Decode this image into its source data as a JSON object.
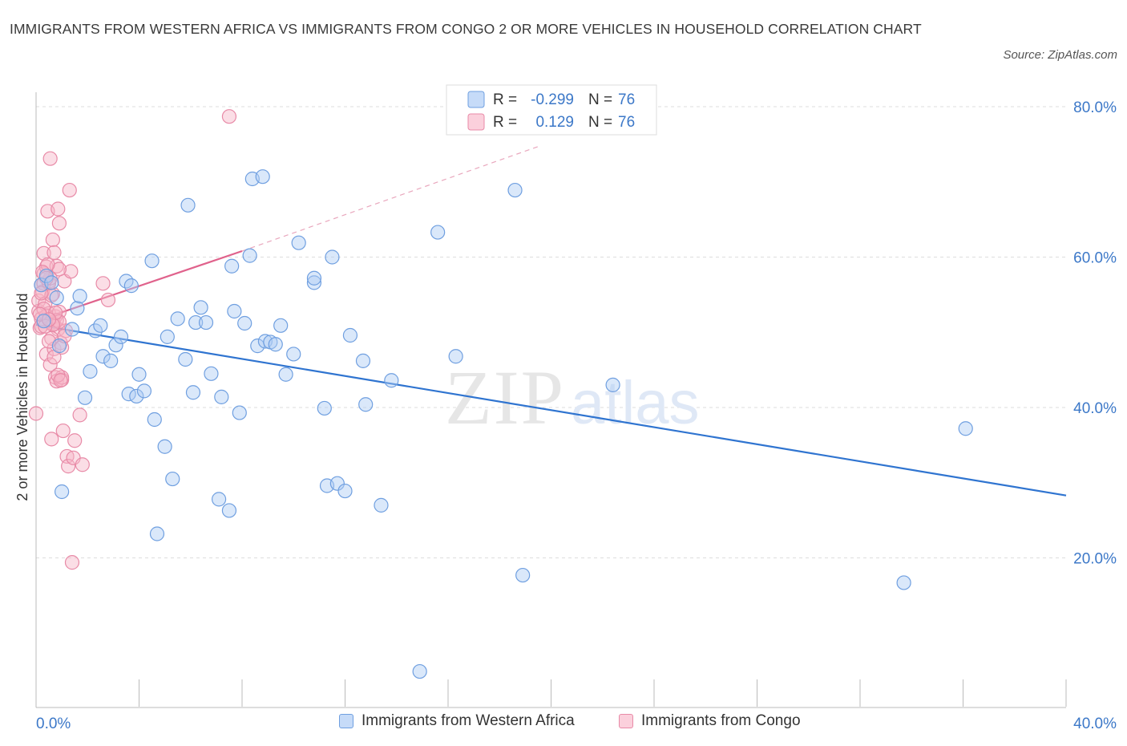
{
  "title": "IMMIGRANTS FROM WESTERN AFRICA VS IMMIGRANTS FROM CONGO 2 OR MORE VEHICLES IN HOUSEHOLD CORRELATION CHART",
  "source": "Source: ZipAtlas.com",
  "watermark": {
    "zip": "ZIP",
    "atlas": "atlas"
  },
  "colors": {
    "blue_fill": "#aecbf5",
    "blue_stroke": "#6f9fe0",
    "blue_line": "#2f74d0",
    "pink_fill": "#f7b5c8",
    "pink_stroke": "#e88aa7",
    "pink_line": "#e0628c",
    "axis_text": "#3c78c8",
    "grid": "#dddddd"
  },
  "legend": {
    "r_label": "R =",
    "n_label": "N =",
    "rows": [
      {
        "r": "-0.299",
        "n": "76",
        "color": "blue"
      },
      {
        "r": "0.129",
        "n": "76",
        "color": "pink"
      }
    ]
  },
  "bottom_legend": [
    "Immigrants from Western Africa",
    "Immigrants from Congo"
  ],
  "chart_data": {
    "type": "scatter",
    "xlabel": "",
    "ylabel": "2 or more Vehicles in Household",
    "x_tick_labels": [
      "0.0%",
      "40.0%"
    ],
    "y_tick_labels": [
      "20.0%",
      "40.0%",
      "60.0%",
      "80.0%"
    ],
    "xlim": [
      0,
      40
    ],
    "ylim": [
      0,
      80
    ],
    "grid": true,
    "legend_position": "top-center",
    "series": [
      {
        "name": "Immigrants from Western Africa",
        "color": "blue",
        "trend": {
          "x0": 0,
          "y0": 51.0,
          "x1": 40,
          "y1": 28.3,
          "dashed_extension": false
        },
        "points": [
          [
            0.2,
            56.3
          ],
          [
            0.4,
            57.5
          ],
          [
            0.6,
            56.6
          ],
          [
            0.8,
            54.6
          ],
          [
            0.9,
            48.2
          ],
          [
            1.0,
            28.8
          ],
          [
            1.4,
            50.4
          ],
          [
            1.6,
            53.2
          ],
          [
            1.7,
            54.8
          ],
          [
            1.9,
            41.3
          ],
          [
            2.1,
            44.8
          ],
          [
            2.3,
            50.2
          ],
          [
            2.5,
            50.9
          ],
          [
            2.6,
            46.8
          ],
          [
            2.9,
            46.2
          ],
          [
            3.1,
            48.3
          ],
          [
            3.3,
            49.4
          ],
          [
            3.5,
            56.8
          ],
          [
            3.7,
            56.2
          ],
          [
            3.6,
            41.8
          ],
          [
            3.9,
            41.5
          ],
          [
            4.0,
            44.4
          ],
          [
            4.2,
            42.2
          ],
          [
            4.5,
            59.5
          ],
          [
            4.6,
            38.4
          ],
          [
            4.7,
            23.2
          ],
          [
            5.0,
            34.8
          ],
          [
            5.1,
            49.4
          ],
          [
            5.3,
            30.5
          ],
          [
            5.5,
            51.8
          ],
          [
            5.8,
            46.4
          ],
          [
            5.9,
            66.9
          ],
          [
            6.1,
            42.0
          ],
          [
            6.2,
            51.3
          ],
          [
            6.4,
            53.3
          ],
          [
            6.6,
            51.3
          ],
          [
            6.8,
            44.5
          ],
          [
            7.1,
            27.8
          ],
          [
            7.2,
            41.4
          ],
          [
            7.5,
            26.3
          ],
          [
            7.6,
            58.8
          ],
          [
            7.7,
            52.8
          ],
          [
            7.9,
            39.3
          ],
          [
            8.1,
            51.2
          ],
          [
            8.3,
            60.2
          ],
          [
            8.4,
            70.4
          ],
          [
            8.6,
            48.2
          ],
          [
            8.8,
            70.7
          ],
          [
            8.9,
            48.8
          ],
          [
            9.1,
            48.7
          ],
          [
            9.3,
            48.4
          ],
          [
            9.5,
            50.9
          ],
          [
            9.7,
            44.4
          ],
          [
            10.0,
            47.1
          ],
          [
            10.2,
            61.9
          ],
          [
            10.8,
            56.6
          ],
          [
            10.8,
            57.2
          ],
          [
            11.2,
            39.9
          ],
          [
            11.3,
            29.6
          ],
          [
            11.5,
            60.0
          ],
          [
            11.7,
            29.9
          ],
          [
            12.0,
            28.9
          ],
          [
            12.2,
            49.6
          ],
          [
            12.7,
            46.2
          ],
          [
            12.8,
            40.4
          ],
          [
            13.4,
            27.0
          ],
          [
            13.8,
            43.6
          ],
          [
            14.9,
            4.9
          ],
          [
            15.6,
            63.3
          ],
          [
            16.3,
            46.8
          ],
          [
            18.6,
            68.9
          ],
          [
            18.9,
            17.7
          ],
          [
            22.4,
            43.0
          ],
          [
            33.7,
            16.7
          ],
          [
            36.1,
            37.2
          ],
          [
            0.3,
            51.5
          ]
        ]
      },
      {
        "name": "Immigrants from Congo",
        "color": "pink",
        "trend": {
          "x0": 0,
          "y0": 51.5,
          "x1": 8.0,
          "y1": 60.8,
          "dashed_extension": true,
          "dash_x1": 19.5,
          "dash_y1": 74.7
        },
        "points": [
          [
            0.0,
            39.2
          ],
          [
            0.1,
            52.8
          ],
          [
            0.1,
            54.2
          ],
          [
            0.15,
            50.6
          ],
          [
            0.2,
            51.8
          ],
          [
            0.2,
            56.3
          ],
          [
            0.25,
            55.4
          ],
          [
            0.3,
            60.5
          ],
          [
            0.3,
            57.8
          ],
          [
            0.35,
            53.8
          ],
          [
            0.4,
            58.7
          ],
          [
            0.4,
            47.1
          ],
          [
            0.45,
            66.1
          ],
          [
            0.5,
            52.5
          ],
          [
            0.5,
            56.8
          ],
          [
            0.55,
            73.1
          ],
          [
            0.55,
            45.7
          ],
          [
            0.6,
            35.8
          ],
          [
            0.6,
            51.2
          ],
          [
            0.65,
            55.1
          ],
          [
            0.65,
            62.3
          ],
          [
            0.7,
            60.6
          ],
          [
            0.7,
            47.8
          ],
          [
            0.75,
            52.1
          ],
          [
            0.75,
            44.0
          ],
          [
            0.8,
            58.8
          ],
          [
            0.8,
            43.5
          ],
          [
            0.85,
            66.4
          ],
          [
            0.85,
            50.4
          ],
          [
            0.9,
            64.5
          ],
          [
            0.9,
            52.7
          ],
          [
            0.95,
            48.6
          ],
          [
            1.0,
            43.7
          ],
          [
            1.0,
            48.0
          ],
          [
            1.05,
            36.9
          ],
          [
            1.1,
            56.8
          ],
          [
            1.15,
            50.2
          ],
          [
            1.2,
            33.5
          ],
          [
            1.25,
            32.2
          ],
          [
            1.3,
            68.9
          ],
          [
            1.35,
            58.1
          ],
          [
            1.4,
            19.4
          ],
          [
            1.45,
            33.3
          ],
          [
            1.5,
            35.6
          ],
          [
            1.7,
            39.0
          ],
          [
            1.8,
            32.4
          ],
          [
            2.6,
            56.5
          ],
          [
            2.8,
            54.3
          ],
          [
            7.5,
            78.7
          ],
          [
            0.2,
            50.8
          ],
          [
            0.3,
            56.5
          ],
          [
            0.5,
            56.5
          ],
          [
            0.6,
            49.2
          ],
          [
            0.7,
            51.1
          ],
          [
            0.8,
            51.6
          ],
          [
            0.9,
            58.4
          ],
          [
            1.0,
            44.0
          ],
          [
            0.4,
            52.2
          ],
          [
            0.5,
            48.8
          ],
          [
            0.3,
            53.1
          ],
          [
            0.6,
            54.9
          ],
          [
            0.7,
            46.7
          ],
          [
            0.9,
            51.4
          ],
          [
            1.1,
            49.5
          ],
          [
            0.2,
            55.2
          ],
          [
            0.45,
            59.0
          ],
          [
            0.55,
            57.2
          ],
          [
            0.65,
            51.0
          ],
          [
            0.75,
            52.6
          ],
          [
            0.85,
            44.3
          ],
          [
            0.95,
            43.6
          ],
          [
            0.35,
            50.8
          ],
          [
            0.25,
            58.0
          ],
          [
            0.15,
            52.4
          ],
          [
            0.5,
            51.7
          ],
          [
            0.4,
            57.2
          ]
        ]
      }
    ]
  }
}
